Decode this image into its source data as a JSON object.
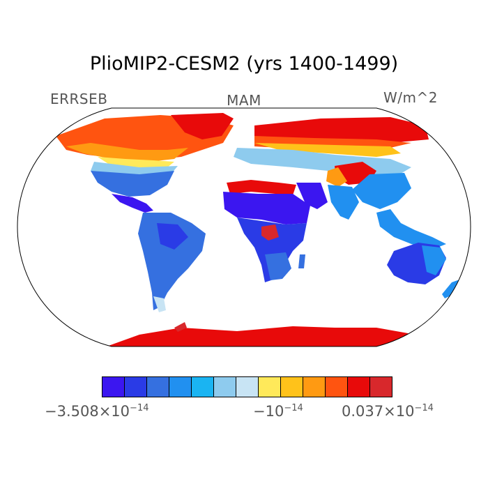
{
  "title": "PlioMIP2-CESM2 (yrs 1400-1499)",
  "variable": "ERRSEB",
  "season": "MAM",
  "units": "W/m^2",
  "colorbar": {
    "colors": [
      "#3b16f0",
      "#2a3be6",
      "#3570e0",
      "#2190f0",
      "#1ab4f2",
      "#8ecbee",
      "#c8e4f4",
      "#ffe95a",
      "#ffc21a",
      "#ff9a12",
      "#ff5410",
      "#e80a0a",
      "#d8282c"
    ],
    "labels": {
      "left": {
        "mantissa": "−3.508×10",
        "exp": "−14"
      },
      "middle": {
        "mantissa": "−10",
        "exp": "−14"
      },
      "right": {
        "mantissa": "0.037×10",
        "exp": "−14"
      }
    }
  }
}
